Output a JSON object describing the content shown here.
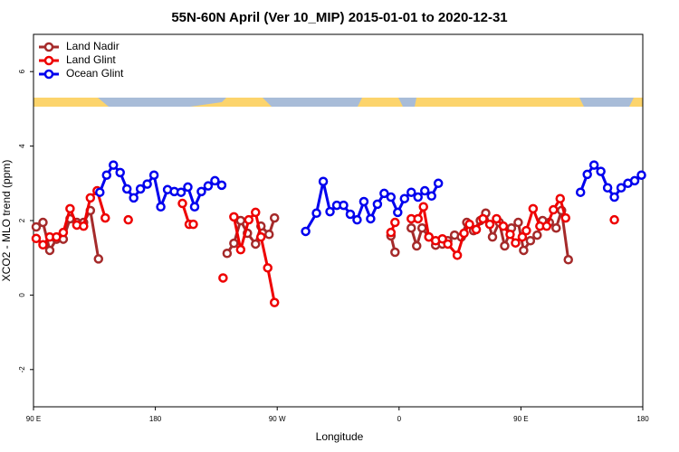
{
  "chart_data": {
    "type": "line",
    "title": "55N-60N April (Ver 10_MIP)   2015-01-01 to 2020-12-31",
    "xlabel": "Longitude",
    "ylabel": "XCO2 - MLO trend (ppm)",
    "xlim": [
      90,
      540
    ],
    "ylim": [
      -3,
      7
    ],
    "xticks": [
      {
        "value": 90,
        "label": "90 E"
      },
      180,
      {
        "value": 270,
        "label": "90 W"
      },
      {
        "value": 360,
        "label": "0"
      },
      {
        "value": 450,
        "label": "90 E"
      },
      {
        "value": 540,
        "label": "180"
      }
    ],
    "yticks": [
      -2,
      0,
      2,
      4,
      6
    ],
    "legend": "top-left",
    "series": [
      {
        "name": "Land Nadir",
        "color": "#a52a2a",
        "x": [
          92,
          97,
          102,
          107,
          112,
          117,
          122,
          127,
          132,
          138,
          null,
          233,
          238,
          243,
          248,
          254,
          258,
          264,
          268,
          null,
          354,
          357,
          null,
          369,
          373,
          377,
          382,
          387,
          392,
          396,
          401,
          406,
          410,
          415,
          420,
          424,
          429,
          434,
          438,
          443,
          448,
          452,
          457,
          462,
          466,
          471,
          476,
          480,
          485
        ],
        "values": [
          1.83,
          1.95,
          1.2,
          1.5,
          1.5,
          2.05,
          1.95,
          1.95,
          2.27,
          0.97,
          null,
          1.12,
          1.39,
          2.0,
          1.66,
          1.37,
          1.85,
          1.63,
          2.07,
          null,
          1.59,
          1.15,
          null,
          1.8,
          1.32,
          1.8,
          1.56,
          1.34,
          1.37,
          1.46,
          1.61,
          1.56,
          1.95,
          1.73,
          2.0,
          2.2,
          1.56,
          1.95,
          1.32,
          1.8,
          1.95,
          1.2,
          1.46,
          1.61,
          2.0,
          1.95,
          1.8,
          2.27,
          0.95
        ]
      },
      {
        "name": "Land Glint",
        "color": "#ee0000",
        "x": [
          92,
          97,
          102,
          107,
          112,
          117,
          122,
          127,
          132,
          137,
          143,
          null,
          160,
          null,
          200,
          205,
          208,
          null,
          230,
          null,
          238,
          243,
          249,
          254,
          258,
          263,
          268,
          null,
          354,
          357,
          null,
          369,
          374,
          378,
          382,
          387,
          392,
          396,
          403,
          408,
          412,
          417,
          422,
          427,
          432,
          437,
          442,
          446,
          451,
          454,
          459,
          464,
          469,
          474,
          479,
          483,
          null,
          519
        ],
        "values": [
          1.52,
          1.35,
          1.56,
          1.56,
          1.68,
          2.32,
          1.88,
          1.85,
          2.61,
          2.8,
          2.07,
          null,
          2.02,
          null,
          2.46,
          1.9,
          1.9,
          null,
          0.46,
          null,
          2.1,
          1.22,
          2.02,
          2.22,
          1.56,
          0.73,
          -0.2,
          null,
          1.68,
          1.95,
          null,
          2.05,
          2.05,
          2.37,
          1.56,
          1.46,
          1.51,
          1.37,
          1.07,
          1.66,
          1.9,
          1.76,
          2.05,
          1.9,
          2.05,
          1.85,
          1.63,
          1.4,
          1.56,
          1.73,
          2.32,
          1.85,
          1.85,
          2.29,
          2.59,
          2.07,
          null,
          2.02
        ]
      },
      {
        "name": "Ocean Glint",
        "color": "#0000ee",
        "x": [
          139,
          144,
          149,
          154,
          159,
          164,
          169,
          174,
          179,
          184,
          189,
          194,
          199,
          204,
          209,
          214,
          219,
          224,
          229,
          null,
          291,
          299,
          304,
          309,
          314,
          319,
          324,
          329,
          334,
          339,
          344,
          349,
          354,
          359,
          364,
          369,
          374,
          379,
          384,
          389,
          null,
          494,
          499,
          504,
          509,
          514,
          519,
          524,
          529,
          534,
          539
        ],
        "values": [
          2.76,
          3.22,
          3.49,
          3.29,
          2.85,
          2.61,
          2.85,
          2.98,
          3.22,
          2.37,
          2.83,
          2.78,
          2.76,
          2.9,
          2.37,
          2.78,
          2.93,
          3.07,
          2.95,
          null,
          1.71,
          2.2,
          3.05,
          2.24,
          2.41,
          2.41,
          2.17,
          2.02,
          2.51,
          2.05,
          2.44,
          2.73,
          2.63,
          2.22,
          2.59,
          2.76,
          2.63,
          2.8,
          2.66,
          3.0,
          null,
          2.76,
          3.24,
          3.49,
          3.32,
          2.88,
          2.63,
          2.88,
          3.0,
          3.07,
          3.22
        ]
      }
    ]
  }
}
